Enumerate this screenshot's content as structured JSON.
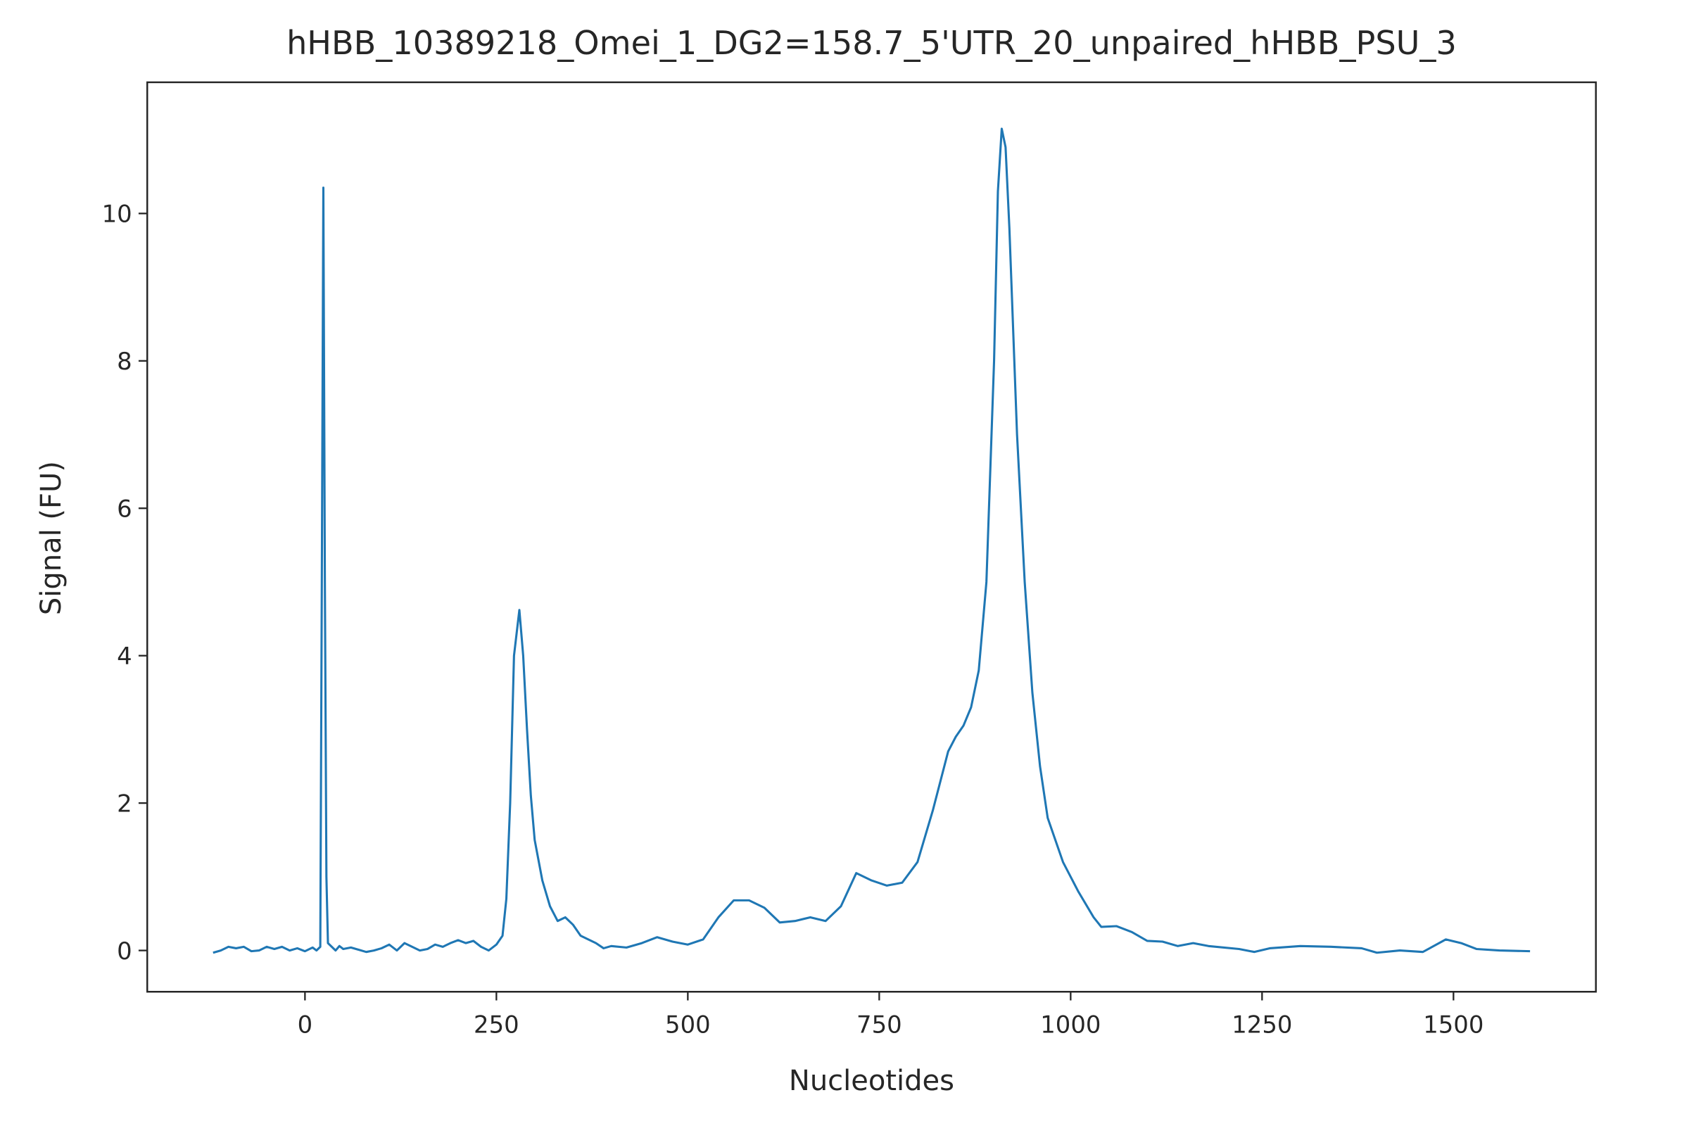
{
  "chart_data": {
    "type": "line",
    "title": "hHBB_10389218_Omei_1_DG2=158.7_5'UTR_20_unpaired_hHBB_PSU_3",
    "x_label": "Nucleotides",
    "y_label": "Signal (FU)",
    "x": [
      -120,
      -110,
      -100,
      -90,
      -80,
      -70,
      -60,
      -50,
      -40,
      -30,
      -20,
      -10,
      0,
      10,
      15,
      20,
      22,
      24,
      26,
      28,
      30,
      35,
      40,
      45,
      50,
      60,
      70,
      80,
      90,
      100,
      110,
      120,
      130,
      140,
      150,
      160,
      170,
      180,
      190,
      200,
      210,
      220,
      230,
      240,
      250,
      258,
      263,
      268,
      273,
      280,
      285,
      290,
      295,
      300,
      310,
      320,
      330,
      340,
      350,
      360,
      370,
      380,
      390,
      400,
      420,
      440,
      460,
      480,
      500,
      520,
      540,
      560,
      580,
      600,
      620,
      640,
      660,
      680,
      700,
      720,
      740,
      760,
      780,
      800,
      820,
      840,
      850,
      860,
      870,
      880,
      890,
      900,
      905,
      910,
      915,
      920,
      930,
      940,
      950,
      960,
      970,
      990,
      1010,
      1030,
      1040,
      1060,
      1080,
      1100,
      1120,
      1140,
      1160,
      1180,
      1220,
      1240,
      1260,
      1300,
      1340,
      1380,
      1400,
      1430,
      1460,
      1490,
      1510,
      1530,
      1560,
      1600
    ],
    "series": [
      {
        "name": "signal",
        "color": "#1f77b4",
        "values": [
          -0.03,
          0.0,
          0.05,
          0.03,
          0.05,
          -0.01,
          0.0,
          0.05,
          0.02,
          0.05,
          0.0,
          0.03,
          -0.01,
          0.04,
          0.0,
          0.05,
          5.0,
          10.35,
          5.0,
          1.0,
          0.1,
          0.05,
          0.0,
          0.06,
          0.02,
          0.04,
          0.01,
          -0.02,
          0.0,
          0.03,
          0.08,
          0.0,
          0.1,
          0.05,
          0.0,
          0.02,
          0.08,
          0.05,
          0.1,
          0.14,
          0.1,
          0.13,
          0.05,
          0.0,
          0.08,
          0.2,
          0.7,
          2.0,
          4.0,
          4.62,
          4.0,
          3.0,
          2.1,
          1.5,
          0.95,
          0.6,
          0.4,
          0.45,
          0.35,
          0.2,
          0.15,
          0.1,
          0.03,
          0.06,
          0.04,
          0.1,
          0.18,
          0.12,
          0.08,
          0.15,
          0.45,
          0.68,
          0.68,
          0.58,
          0.38,
          0.4,
          0.45,
          0.4,
          0.6,
          1.05,
          0.95,
          0.88,
          0.92,
          1.2,
          1.9,
          2.7,
          2.9,
          3.05,
          3.3,
          3.8,
          5.0,
          8.0,
          10.3,
          11.15,
          10.9,
          9.8,
          7.0,
          5.0,
          3.5,
          2.5,
          1.8,
          1.2,
          0.8,
          0.45,
          0.32,
          0.33,
          0.25,
          0.13,
          0.12,
          0.06,
          0.1,
          0.06,
          0.02,
          -0.02,
          0.03,
          0.06,
          0.05,
          0.03,
          -0.03,
          0.0,
          -0.02,
          0.15,
          0.1,
          0.02,
          0.0,
          -0.01
        ]
      }
    ],
    "xlim": [
      -206,
      1686
    ],
    "ylim": [
      -0.56,
      11.78
    ],
    "xticks": [
      0,
      250,
      500,
      750,
      1000,
      1250,
      1500
    ],
    "yticks": [
      0,
      2,
      4,
      6,
      8,
      10
    ]
  }
}
